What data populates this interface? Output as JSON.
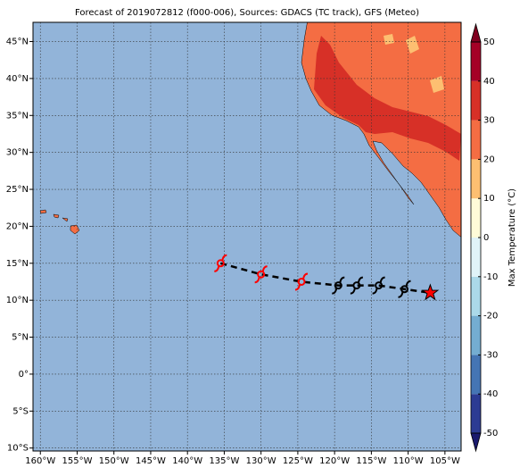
{
  "chart_data": {
    "type": "map",
    "title": "Forecast of 2019072812 (f000-006), Sources: GDACS (TC track), GFS (Meteo)",
    "xlim": [
      -161,
      -102.8
    ],
    "ylim": [
      -10.4,
      47.6
    ],
    "xticks": [
      {
        "value": -160,
        "label": "160°W"
      },
      {
        "value": -155,
        "label": "155°W"
      },
      {
        "value": -150,
        "label": "150°W"
      },
      {
        "value": -145,
        "label": "145°W"
      },
      {
        "value": -140,
        "label": "140°W"
      },
      {
        "value": -135,
        "label": "135°W"
      },
      {
        "value": -130,
        "label": "130°W"
      },
      {
        "value": -125,
        "label": "125°W"
      },
      {
        "value": -120,
        "label": "120°W"
      },
      {
        "value": -115,
        "label": "115°W"
      },
      {
        "value": -110,
        "label": "110°W"
      },
      {
        "value": -105,
        "label": "105°W"
      }
    ],
    "yticks": [
      {
        "value": -10,
        "label": "10°S"
      },
      {
        "value": -5,
        "label": "5°S"
      },
      {
        "value": 0,
        "label": "0°"
      },
      {
        "value": 5,
        "label": "5°N"
      },
      {
        "value": 10,
        "label": "10°N"
      },
      {
        "value": 15,
        "label": "15°N"
      },
      {
        "value": 20,
        "label": "20°N"
      },
      {
        "value": 25,
        "label": "25°N"
      },
      {
        "value": 30,
        "label": "30°N"
      },
      {
        "value": 35,
        "label": "35°N"
      },
      {
        "value": 40,
        "label": "40°N"
      },
      {
        "value": 45,
        "label": "45°N"
      }
    ],
    "grid": true,
    "track": {
      "lon": [
        -135.5,
        -130,
        -124.5,
        -119.5,
        -117,
        -114,
        -110.5,
        -107
      ],
      "lat": [
        15,
        13.5,
        12.5,
        12,
        12,
        12,
        11.5,
        11
      ],
      "markers": [
        "hurricane",
        "hurricane",
        "hurricane",
        "hurricane",
        "hurricane",
        "hurricane",
        "hurricane",
        "star"
      ],
      "colors": [
        "#ff0000",
        "#ff0000",
        "#ff0000",
        "#000000",
        "#000000",
        "#000000",
        "#000000",
        "#ff0000"
      ],
      "line_color": "#000000"
    },
    "colorbar": {
      "label": "Max Temperature (°C)",
      "levels": [
        -50,
        -40,
        -30,
        -20,
        -10,
        0,
        10,
        20,
        30,
        40,
        50
      ],
      "colors": [
        "#2c3b93",
        "#4575b4",
        "#74add1",
        "#abd9e9",
        "#e0f3f8",
        "#fffbd8",
        "#fdbf71",
        "#f46d43",
        "#d73027",
        "#a50026"
      ],
      "under_color": "#1a1a6e",
      "over_color": "#800020"
    }
  }
}
